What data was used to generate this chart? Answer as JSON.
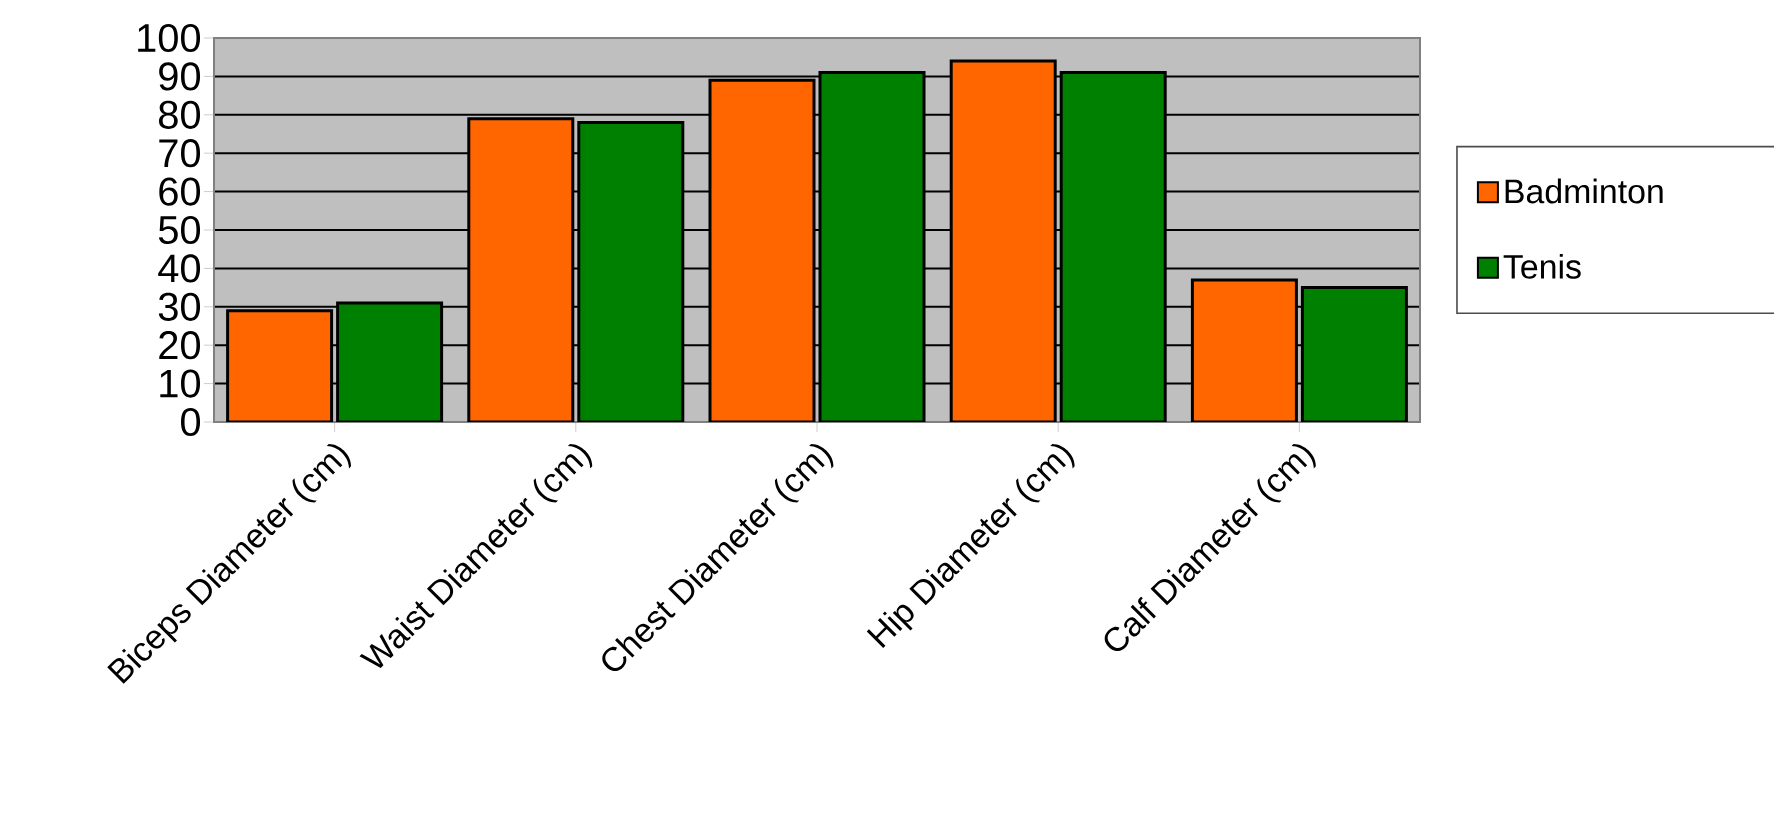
{
  "chart_data": {
    "type": "bar",
    "categories": [
      "Biceps Diameter (cm)",
      "Waist Diameter (cm)",
      "Chest Diameter (cm)",
      "Hip Diameter (cm)",
      "Calf Diameter (cm)"
    ],
    "series": [
      {
        "name": "Badminton",
        "color": "#ff6600",
        "values": [
          29,
          79,
          89,
          94,
          37
        ]
      },
      {
        "name": "Tenis",
        "color": "#008000",
        "values": [
          31,
          78,
          91,
          91,
          35
        ]
      }
    ],
    "ylim": [
      0,
      100
    ],
    "yticks": [
      0,
      10,
      20,
      30,
      40,
      50,
      60,
      70,
      80,
      90,
      100
    ],
    "grid": "y",
    "legend": "right"
  }
}
